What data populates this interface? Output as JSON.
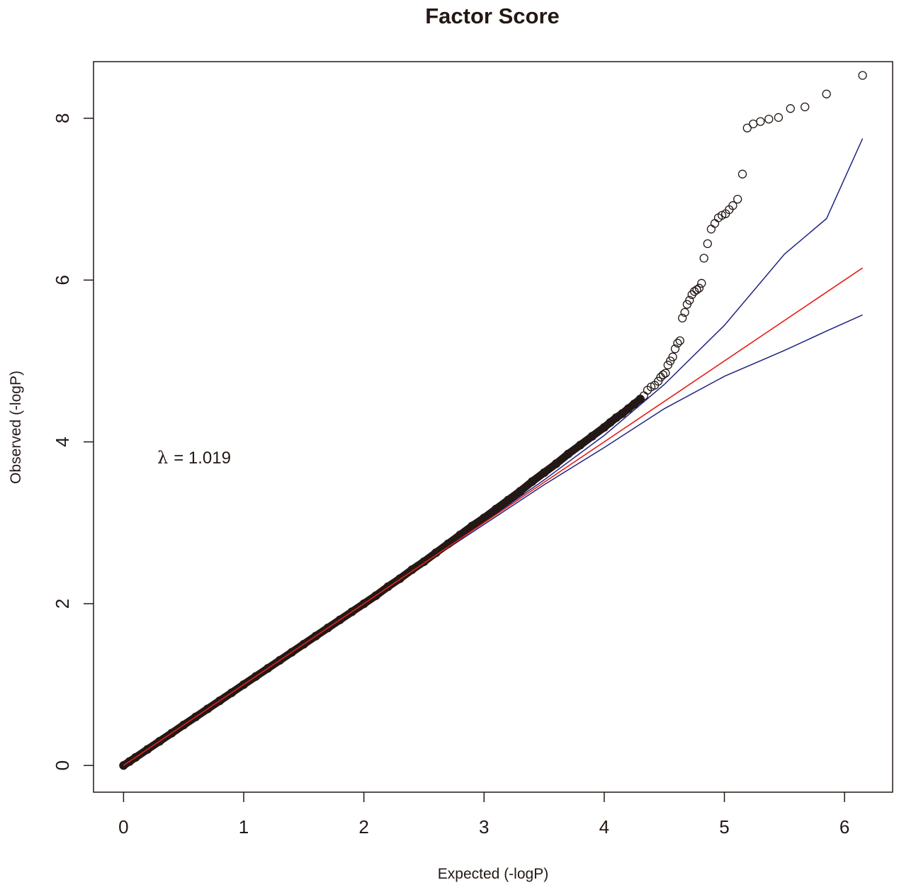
{
  "chart_data": {
    "type": "scatter",
    "title": "Factor Score",
    "xlabel": "Expected (-logP)",
    "ylabel": "Observed (-logP)",
    "xlim": [
      -0.25,
      6.4
    ],
    "ylim": [
      -0.33,
      8.7
    ],
    "x_ticks": [
      0,
      1,
      2,
      3,
      4,
      5,
      6
    ],
    "y_ticks": [
      0,
      2,
      4,
      6,
      8
    ],
    "grid": false,
    "legend": "none",
    "annotation": {
      "symbol": "λ",
      "text": "= 1.019"
    },
    "colors": {
      "points": "#231815",
      "diagonal": "#e8231c",
      "confidence_band": "#1f2280",
      "axis": "#231815"
    },
    "series": [
      {
        "kind": "points",
        "x": [
          0.0,
          0.05,
          0.1,
          0.2,
          0.3,
          0.4,
          0.5,
          0.6,
          0.7,
          0.8,
          0.9,
          1.0,
          1.1,
          1.2,
          1.3,
          1.4,
          1.5,
          1.6,
          1.7,
          1.8,
          1.9,
          2.0,
          2.1,
          2.2,
          2.3,
          2.4,
          2.5,
          2.6,
          2.7,
          2.8,
          2.9,
          3.0,
          3.1,
          3.2,
          3.3,
          3.4,
          3.5,
          3.6,
          3.7,
          3.8,
          3.9,
          4.0,
          4.05,
          4.1,
          4.15,
          4.2,
          4.25,
          4.3,
          4.33,
          4.36,
          4.39,
          4.42,
          4.45,
          4.47,
          4.49,
          4.51,
          4.53,
          4.55,
          4.57,
          4.59,
          4.61,
          4.63,
          4.65,
          4.67,
          4.69,
          4.71,
          4.73,
          4.75,
          4.77,
          4.79,
          4.81,
          4.83,
          4.86,
          4.89,
          4.92,
          4.95,
          4.98,
          5.01,
          5.04,
          5.07,
          5.11,
          5.15,
          5.19,
          5.24,
          5.3,
          5.37,
          5.45,
          5.55,
          5.67,
          5.85,
          6.15
        ],
        "y": [
          0.0,
          0.05,
          0.1,
          0.2,
          0.3,
          0.4,
          0.5,
          0.6,
          0.7,
          0.8,
          0.9,
          1.0,
          1.1,
          1.2,
          1.3,
          1.4,
          1.5,
          1.6,
          1.7,
          1.8,
          1.9,
          2.0,
          2.1,
          2.21,
          2.31,
          2.42,
          2.52,
          2.63,
          2.74,
          2.85,
          2.96,
          3.06,
          3.17,
          3.28,
          3.39,
          3.51,
          3.62,
          3.73,
          3.85,
          3.96,
          4.07,
          4.18,
          4.24,
          4.3,
          4.35,
          4.41,
          4.47,
          4.53,
          4.57,
          4.64,
          4.68,
          4.7,
          4.75,
          4.8,
          4.83,
          4.85,
          4.95,
          5.0,
          5.05,
          5.15,
          5.22,
          5.25,
          5.53,
          5.6,
          5.7,
          5.75,
          5.82,
          5.86,
          5.88,
          5.9,
          5.96,
          6.27,
          6.45,
          6.63,
          6.7,
          6.77,
          6.8,
          6.82,
          6.87,
          6.92,
          7.0,
          7.31,
          7.88,
          7.93,
          7.96,
          7.99,
          8.01,
          8.12,
          8.14,
          8.3,
          8.53
        ]
      },
      {
        "kind": "line",
        "x": [
          0,
          6.15
        ],
        "y": [
          0,
          6.15
        ]
      },
      {
        "kind": "line",
        "x": [
          0,
          0.5,
          1,
          1.5,
          2,
          2.5,
          3,
          3.5,
          4,
          4.5,
          5,
          5.5,
          5.85,
          6.15
        ],
        "y": [
          0,
          0.5,
          1.0,
          1.5,
          2.0,
          2.5,
          3.01,
          3.53,
          4.08,
          4.71,
          5.44,
          6.32,
          6.76,
          7.75
        ]
      },
      {
        "kind": "line",
        "x": [
          0,
          0.5,
          1,
          1.5,
          2,
          2.5,
          3,
          3.5,
          4,
          4.5,
          5,
          5.5,
          5.85,
          6.15
        ],
        "y": [
          0,
          0.5,
          1.0,
          1.5,
          2.0,
          2.49,
          2.98,
          3.47,
          3.93,
          4.41,
          4.81,
          5.13,
          5.37,
          5.57
        ]
      }
    ]
  }
}
